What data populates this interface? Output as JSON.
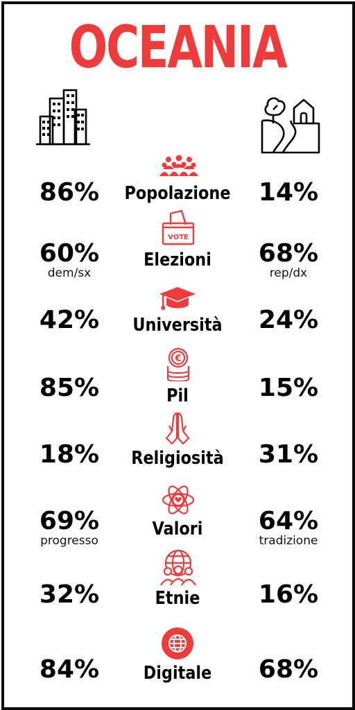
{
  "title": "OCEANIA",
  "colors": {
    "accent": "#ee3b3b",
    "text": "#000000",
    "border": "#0b0b0b"
  },
  "header_icons": {
    "left": "city-buildings-icon",
    "right": "countryside-house-icon"
  },
  "rows": [
    {
      "label": "Popolazione",
      "left": "86%",
      "right": "14%",
      "left_sub": "",
      "right_sub": "",
      "icon": "people-group-icon"
    },
    {
      "label": "Elezioni",
      "left": "60%",
      "right": "68%",
      "left_sub": "dem/sx",
      "right_sub": "rep/dx",
      "icon": "ballot-box-icon",
      "icon_text": "VOTE"
    },
    {
      "label": "Università",
      "left": "42%",
      "right": "24%",
      "left_sub": "",
      "right_sub": "",
      "icon": "graduation-cap-icon"
    },
    {
      "label": "Pil",
      "left": "85%",
      "right": "15%",
      "left_sub": "",
      "right_sub": "",
      "icon": "euro-coins-icon",
      "icon_text": "€"
    },
    {
      "label": "Religiosità",
      "left": "18%",
      "right": "31%",
      "left_sub": "",
      "right_sub": "",
      "icon": "praying-hands-icon"
    },
    {
      "label": "Valori",
      "left": "69%",
      "right": "64%",
      "left_sub": "progresso",
      "right_sub": "tradizione",
      "icon": "atom-heart-icon"
    },
    {
      "label": "Etnie",
      "left": "32%",
      "right": "16%",
      "left_sub": "",
      "right_sub": "",
      "icon": "globe-people-icon"
    },
    {
      "label": "Digitale",
      "left": "84%",
      "right": "68%",
      "left_sub": "",
      "right_sub": "",
      "icon": "globe-circle-icon"
    }
  ]
}
